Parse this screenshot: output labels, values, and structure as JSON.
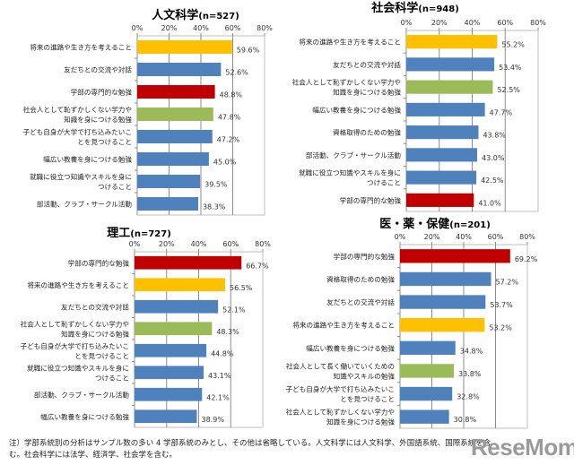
{
  "colors": {
    "blue": "#4F81BD",
    "yellow": "#FFC000",
    "red": "#C00000",
    "green": "#9BBB59",
    "grid": "#BFBFBF"
  },
  "chart_data": [
    {
      "type": "bar",
      "orientation": "horizontal",
      "title": "人文科学",
      "subtitle": "(n=527)",
      "xlim": [
        0,
        80
      ],
      "ticks": [
        "0%",
        "20%",
        "40%",
        "60%",
        "80%"
      ],
      "grid": true,
      "categories": [
        "将来の進路や生き方を考えること",
        "友だちとの交流や対話",
        "学部の専門的な勉強",
        "社会人として恥ずかしくない学力や\n知識を身につける勉強",
        "子ども自身が大学で打ち込みたいこ\nとを見つけること",
        "幅広い教養を身につける勉強",
        "就職に役立つ知識やスキルを身に\nつけること",
        "部活動、クラブ・サークル活動"
      ],
      "values": [
        59.6,
        52.6,
        48.8,
        47.8,
        47.2,
        45.0,
        39.5,
        38.3
      ],
      "labels": [
        "59.6%",
        "52.6%",
        "48.8%",
        "47.8%",
        "47.2%",
        "45.0%",
        "39.5%",
        "38.3%"
      ],
      "bar_colors": [
        "yellow",
        "blue",
        "red",
        "green",
        "blue",
        "blue",
        "blue",
        "blue"
      ]
    },
    {
      "type": "bar",
      "orientation": "horizontal",
      "title": "社会科学",
      "subtitle": "(n=948)",
      "xlim": [
        0,
        80
      ],
      "ticks": [
        "0%",
        "20%",
        "40%",
        "60%",
        "80%"
      ],
      "grid": true,
      "categories": [
        "将来の進路や生き方を考えること",
        "友だちとの交流や対話",
        "社会人として恥ずかしくない学力や\n知識を身につける勉強",
        "幅広い教養を身につける勉強",
        "資格取得のための勉強",
        "部活動、クラブ・サークル活動",
        "就職に役立つ知識やスキルを身に\nつけること",
        "学部の専門的な勉強"
      ],
      "values": [
        55.2,
        53.4,
        52.5,
        47.7,
        43.8,
        43.0,
        42.5,
        41.0
      ],
      "labels": [
        "55.2%",
        "53.4%",
        "52.5%",
        "47.7%",
        "43.8%",
        "43.0%",
        "42.5%",
        "41.0%"
      ],
      "bar_colors": [
        "yellow",
        "blue",
        "green",
        "blue",
        "blue",
        "blue",
        "blue",
        "red"
      ]
    },
    {
      "type": "bar",
      "orientation": "horizontal",
      "title": "理工",
      "subtitle": "(n=727)",
      "xlim": [
        0,
        80
      ],
      "ticks": [
        "0%",
        "20%",
        "40%",
        "60%",
        "80%"
      ],
      "grid": true,
      "categories": [
        "学部の専門的な勉強",
        "将来の進路や生き方を考えること",
        "友だちとの交流や対話",
        "社会人として恥ずかしくない学力や\n知識を身につける勉強",
        "子ども自身が大学で打ち込みたいこ\nとを見つけること",
        "就職に役立つ知識やスキルを身に\nつけること",
        "部活動、クラブ・サークル活動",
        "幅広い教養を身につける勉強"
      ],
      "values": [
        66.7,
        56.5,
        52.1,
        48.3,
        44.8,
        43.1,
        42.1,
        38.9
      ],
      "labels": [
        "66.7%",
        "56.5%",
        "52.1%",
        "48.3%",
        "44.8%",
        "43.1%",
        "42.1%",
        "38.9%"
      ],
      "bar_colors": [
        "red",
        "yellow",
        "blue",
        "green",
        "blue",
        "blue",
        "blue",
        "blue"
      ]
    },
    {
      "type": "bar",
      "orientation": "horizontal",
      "title": "医・薬・保健",
      "subtitle": "(n=201)",
      "xlim": [
        0,
        80
      ],
      "ticks": [
        "0%",
        "20%",
        "40%",
        "60%",
        "80%"
      ],
      "grid": true,
      "categories": [
        "学部の専門的な勉強",
        "資格取得のための勉強",
        "友だちとの交流や対話",
        "将来の進路や生き方を考えること",
        "幅広い教養を身につける勉強",
        "社会人として長く働いていくための\n知識やスキルの勉強",
        "子ども自身が大学で打ち込みたいこ\nとを見つけること",
        "社会人として恥ずかしくない学力や\n知識を身につける勉強"
      ],
      "values": [
        69.2,
        57.2,
        53.7,
        53.2,
        34.8,
        33.8,
        32.8,
        30.8
      ],
      "labels": [
        "69.2%",
        "57.2%",
        "53.7%",
        "53.2%",
        "34.8%",
        "33.8%",
        "32.8%",
        "30.8%"
      ],
      "bar_colors": [
        "red",
        "blue",
        "blue",
        "yellow",
        "blue",
        "green",
        "blue",
        "blue"
      ]
    }
  ],
  "footnote": "注）学部系統別の分析はサンプル数の多い 4 学部系統のみとし、その他は省略している。人文科学には人文科学、外国語系統、国際系統を含む。社会科学には法学、経済学、社会学を含む。",
  "watermark": "ReseMom"
}
